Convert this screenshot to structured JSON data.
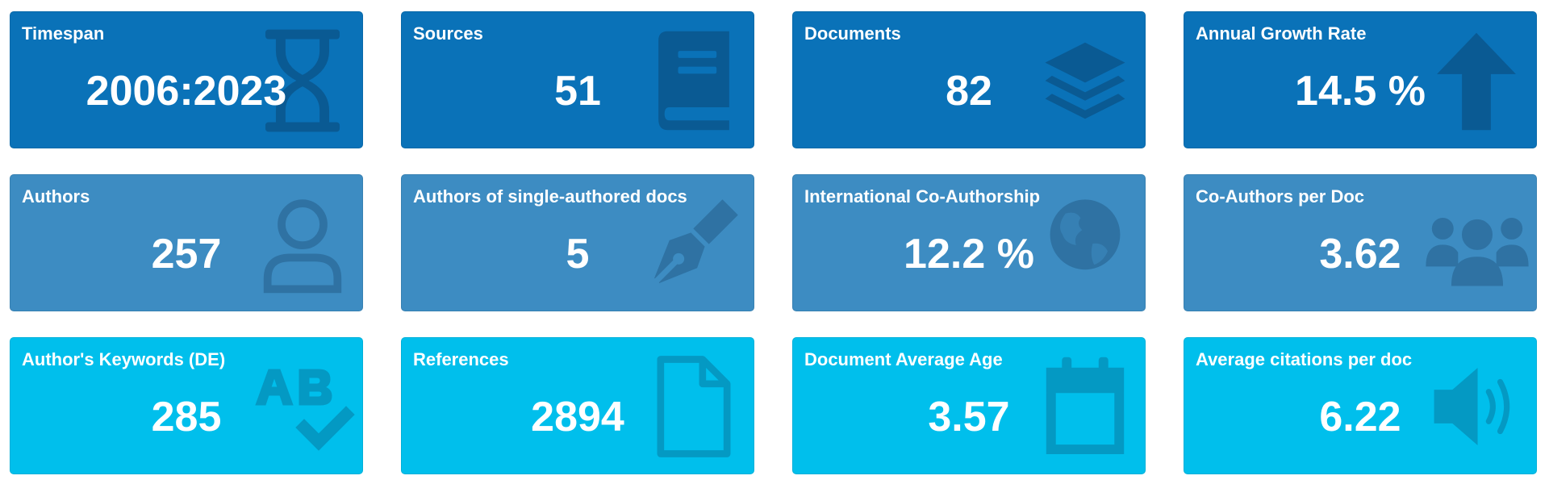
{
  "cards": [
    {
      "label": "Timespan",
      "value": "2006:2023",
      "icon": "hourglass-icon"
    },
    {
      "label": "Sources",
      "value": "51",
      "icon": "book-icon"
    },
    {
      "label": "Documents",
      "value": "82",
      "icon": "layers-icon"
    },
    {
      "label": "Annual Growth Rate",
      "value": "14.5 %",
      "icon": "arrow-up-icon"
    },
    {
      "label": "Authors",
      "value": "257",
      "icon": "user-icon"
    },
    {
      "label": "Authors of single-authored docs",
      "value": "5",
      "icon": "pen-nib-icon"
    },
    {
      "label": "International Co-Authorship",
      "value": "12.2 %",
      "icon": "globe-icon"
    },
    {
      "label": "Co-Authors per Doc",
      "value": "3.62",
      "icon": "users-icon"
    },
    {
      "label": "Author's Keywords (DE)",
      "value": "285",
      "icon": "spell-check-icon"
    },
    {
      "label": "References",
      "value": "2894",
      "icon": "file-icon"
    },
    {
      "label": "Document Average Age",
      "value": "3.57",
      "icon": "calendar-icon"
    },
    {
      "label": "Average citations per doc",
      "value": "6.22",
      "icon": "volume-icon"
    }
  ],
  "colors": {
    "row1": "#0a72b8",
    "row2": "#3d8cc2",
    "row3": "#00bfec",
    "text": "#ffffff"
  }
}
